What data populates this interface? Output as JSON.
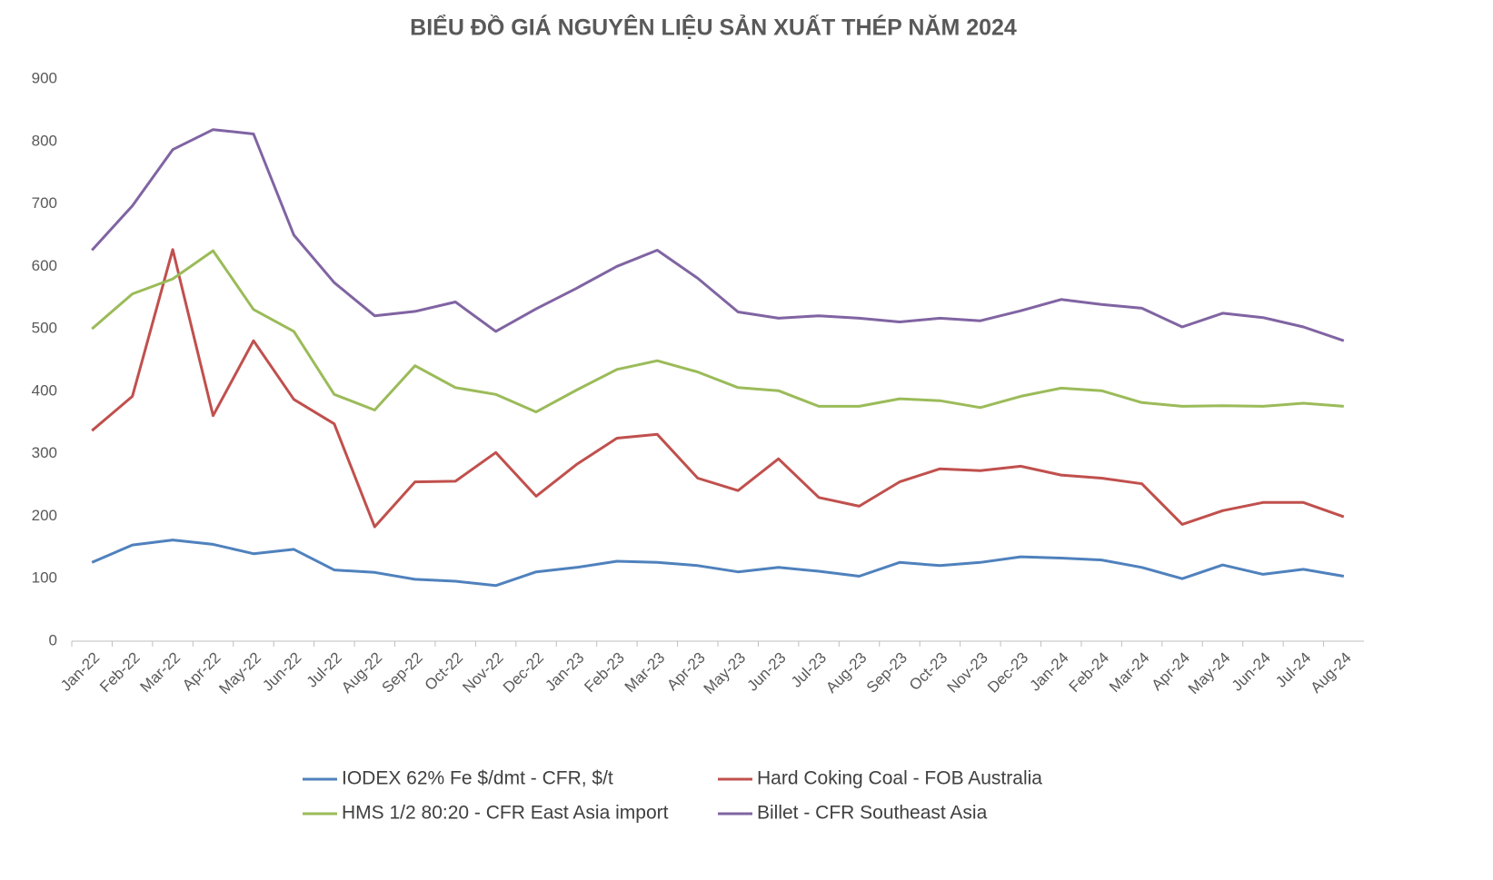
{
  "chart_data": {
    "type": "line",
    "title": "BIỂU ĐỒ GIÁ NGUYÊN LIỆU SẢN XUẤT THÉP NĂM 2024",
    "categories": [
      "Jan-22",
      "Feb-22",
      "Mar-22",
      "Apr-22",
      "May-22",
      "Jun-22",
      "Jul-22",
      "Aug-22",
      "Sep-22",
      "Oct-22",
      "Nov-22",
      "Dec-22",
      "Jan-23",
      "Feb-23",
      "Mar-23",
      "Apr-23",
      "May-23",
      "Jun-23",
      "Jul-23",
      "Aug-23",
      "Sep-23",
      "Oct-23",
      "Nov-23",
      "Dec-23",
      "Jan-24",
      "Feb-24",
      "Mar-24",
      "Apr-24",
      "May-24",
      "Jun-24",
      "Jul-24",
      "Aug-24"
    ],
    "series": [
      {
        "name": "IODEX 62% Fe $/dmt - CFR, $/t",
        "color": "#4f81bd",
        "values": [
          126,
          154,
          162,
          155,
          140,
          147,
          114,
          110,
          99,
          96,
          89,
          111,
          118,
          128,
          126,
          121,
          111,
          118,
          112,
          104,
          126,
          121,
          126,
          135,
          133,
          130,
          118,
          100,
          122,
          107,
          115,
          104
        ]
      },
      {
        "name": "Hard Coking Coal - FOB Australia",
        "color": "#c0504d",
        "values": [
          337,
          392,
          627,
          361,
          481,
          387,
          348,
          183,
          255,
          256,
          302,
          232,
          283,
          325,
          331,
          261,
          241,
          292,
          230,
          216,
          255,
          276,
          273,
          280,
          266,
          261,
          252,
          187,
          209,
          222,
          222,
          199
        ]
      },
      {
        "name": "HMS 1/2 80:20 - CFR East Asia import",
        "color": "#9bbb59",
        "values": [
          500,
          556,
          580,
          625,
          531,
          496,
          395,
          370,
          441,
          406,
          395,
          367,
          402,
          435,
          449,
          431,
          406,
          401,
          376,
          376,
          388,
          385,
          374,
          392,
          405,
          401,
          382,
          376,
          377,
          376,
          381,
          376
        ]
      },
      {
        "name": "Billet - CFR Southeast Asia",
        "color": "#8064a2",
        "values": [
          626,
          697,
          787,
          819,
          812,
          650,
          574,
          521,
          528,
          543,
          496,
          532,
          565,
          600,
          626,
          581,
          527,
          517,
          521,
          517,
          511,
          517,
          513,
          529,
          547,
          539,
          533,
          503,
          525,
          518,
          503,
          481
        ]
      }
    ],
    "ylim": [
      0,
      900
    ],
    "yticks": [
      0,
      100,
      200,
      300,
      400,
      500,
      600,
      700,
      800,
      900
    ],
    "grid": false
  }
}
